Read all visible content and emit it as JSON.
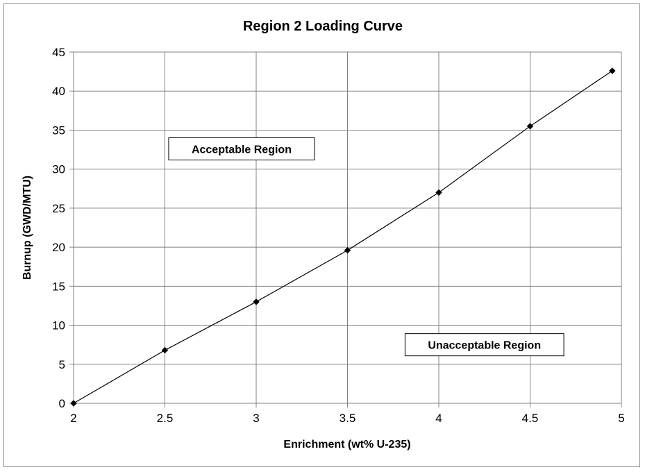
{
  "chart_data": {
    "type": "line",
    "title": "Region 2 Loading Curve",
    "xlabel": "Enrichment (wt% U-235)",
    "ylabel": "Burnup (GWD/MTU)",
    "xlim": [
      2,
      5
    ],
    "ylim": [
      0,
      45
    ],
    "xticks": [
      2,
      2.5,
      3,
      3.5,
      4,
      4.5,
      5
    ],
    "yticks": [
      0,
      5,
      10,
      15,
      20,
      25,
      30,
      35,
      40,
      45
    ],
    "xtick_labels": [
      "2",
      "2.5",
      "3",
      "3.5",
      "4",
      "4.5",
      "5"
    ],
    "ytick_labels": [
      "0",
      "5",
      "10",
      "15",
      "20",
      "25",
      "30",
      "35",
      "40",
      "45"
    ],
    "grid": true,
    "series": [
      {
        "x": [
          2.0,
          2.5,
          3.0,
          3.5,
          4.0,
          4.5,
          4.95
        ],
        "y": [
          0.0,
          6.8,
          13.0,
          19.6,
          27.0,
          35.5,
          42.6
        ],
        "color": "#000000",
        "marker": "diamond"
      }
    ],
    "annotations": [
      {
        "text": "Acceptable Region",
        "x": 2.92,
        "y": 32.6
      },
      {
        "text": "Unacceptable Region",
        "x": 4.25,
        "y": 7.5
      }
    ]
  }
}
